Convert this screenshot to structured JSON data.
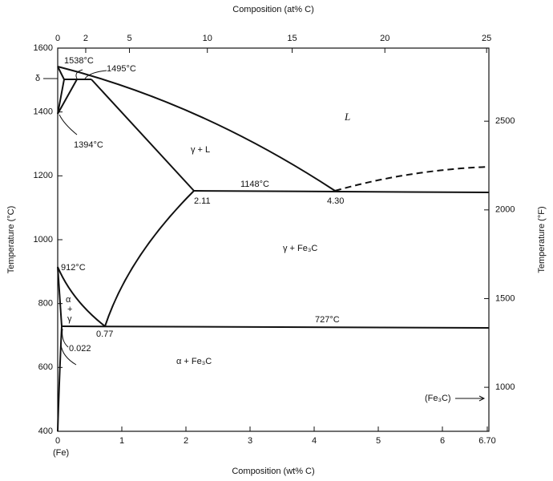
{
  "top_axis": {
    "title": "Composition (at% C)",
    "ticks": [
      0,
      2,
      5,
      10,
      15,
      20,
      25
    ]
  },
  "bottom_axis": {
    "title": "Composition (wt% C)",
    "lim": [
      0,
      6.7
    ],
    "ticks": [
      0,
      1,
      2,
      3,
      4,
      5,
      6,
      {
        "value": 6.7,
        "label": "6.70"
      }
    ]
  },
  "left_axis": {
    "title": "Temperature (°C)",
    "lim": [
      400,
      1600
    ],
    "ticks": [
      400,
      600,
      800,
      1000,
      1200,
      1400,
      1600
    ]
  },
  "right_axis": {
    "title": "Temperature (°F)",
    "ticks": [
      1000,
      1500,
      2000,
      2500
    ]
  },
  "labels": {
    "t1538": "1538°C",
    "t1495": "1495°C",
    "delta": "δ",
    "t1394": "1394°C",
    "liquid": "L",
    "gamma_l": "γ + L",
    "t1148": "1148°C",
    "c211": "2.11",
    "c430": "4.30",
    "gamma_fe3c": "γ + Fe₃C",
    "t912": "912°C",
    "alpha": "α",
    "plus": "+",
    "gamma": "γ",
    "c077": "0.77",
    "t727": "727°C",
    "c0022": "0.022",
    "alpha_fe3c": "α + Fe₃C",
    "fe3c": "(Fe₃C)",
    "fe": "(Fe)"
  }
}
